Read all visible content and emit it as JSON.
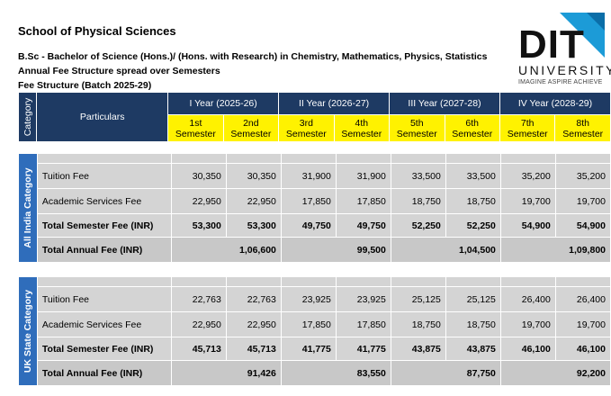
{
  "header": {
    "school": "School of Physical Sciences",
    "program": "B.Sc - Bachelor of Science (Hons.)/ (Hons. with Research) in Chemistry, Mathematics, Physics, Statistics",
    "subtitle": "Annual Fee Structure spread over Semesters",
    "batch": "Fee Structure (Batch 2025-29)"
  },
  "logo": {
    "word": "DIT",
    "university": "UNIVERSITY",
    "tagline": "IMAGINE  ASPIRE  ACHIEVE",
    "accent": "#1c9bd7"
  },
  "table_header": {
    "category": "Category",
    "particulars": "Particulars",
    "years": [
      "I Year (2025-26)",
      "II Year (2026-27)",
      "III Year (2027-28)",
      "IV Year (2028-29)"
    ],
    "semesters": [
      [
        "1st",
        "Semester"
      ],
      [
        "2nd",
        "Semester"
      ],
      [
        "3rd",
        "Semester"
      ],
      [
        "4th",
        "Semester"
      ],
      [
        "5th",
        "Semester"
      ],
      [
        "6th",
        "Semester"
      ],
      [
        "7th",
        "Semester"
      ],
      [
        "8th",
        "Semester"
      ]
    ]
  },
  "all_india": {
    "category": "All India Category",
    "rows": [
      {
        "label": "Tuition Fee",
        "values": [
          "30,350",
          "30,350",
          "31,900",
          "31,900",
          "33,500",
          "33,500",
          "35,200",
          "35,200"
        ]
      },
      {
        "label": "Academic Services Fee",
        "values": [
          "22,950",
          "22,950",
          "17,850",
          "17,850",
          "18,750",
          "18,750",
          "19,700",
          "19,700"
        ]
      },
      {
        "label": "Total Semester Fee (INR)",
        "values": [
          "53,300",
          "53,300",
          "49,750",
          "49,750",
          "52,250",
          "52,250",
          "54,900",
          "54,900"
        ]
      }
    ],
    "annual": {
      "label": "Total Annual Fee (INR)",
      "values": [
        "1,06,600",
        "99,500",
        "1,04,500",
        "1,09,800"
      ]
    }
  },
  "uk_state": {
    "category": "UK State Category",
    "rows": [
      {
        "label": "Tuition Fee",
        "values": [
          "22,763",
          "22,763",
          "23,925",
          "23,925",
          "25,125",
          "25,125",
          "26,400",
          "26,400"
        ]
      },
      {
        "label": "Academic Services Fee",
        "values": [
          "22,950",
          "22,950",
          "17,850",
          "17,850",
          "18,750",
          "18,750",
          "19,700",
          "19,700"
        ]
      },
      {
        "label": "Total Semester Fee (INR)",
        "values": [
          "45,713",
          "45,713",
          "41,775",
          "41,775",
          "43,875",
          "43,875",
          "46,100",
          "46,100"
        ]
      }
    ],
    "annual": {
      "label": "Total Annual Fee (INR)",
      "values": [
        "91,426",
        "83,550",
        "87,750",
        "92,200"
      ]
    }
  },
  "colors": {
    "header_navy": "#1e3a63",
    "category_blue": "#2f6dbb",
    "semester_yellow": "#fff200",
    "row_gray": "#d4d4d4"
  }
}
